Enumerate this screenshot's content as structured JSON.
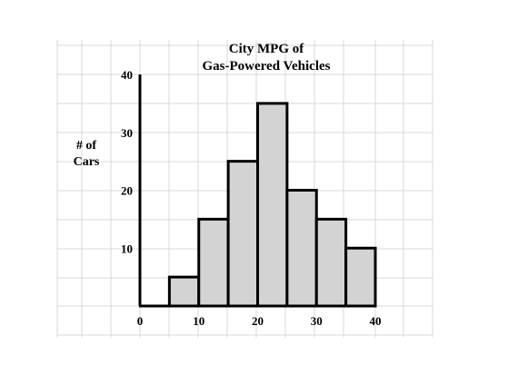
{
  "chart_data": {
    "type": "bar",
    "title": [
      "City MPG of",
      "Gas-Powered Vehicles"
    ],
    "ylabel": [
      "# of",
      "Cars"
    ],
    "xlabel": "",
    "bins": [
      {
        "start": 5,
        "end": 10,
        "count": 5
      },
      {
        "start": 10,
        "end": 15,
        "count": 15
      },
      {
        "start": 15,
        "end": 20,
        "count": 25
      },
      {
        "start": 20,
        "end": 25,
        "count": 35
      },
      {
        "start": 25,
        "end": 30,
        "count": 20
      },
      {
        "start": 30,
        "end": 35,
        "count": 15
      },
      {
        "start": 35,
        "end": 40,
        "count": 10
      }
    ],
    "xlim": [
      0,
      40
    ],
    "ylim": [
      0,
      40
    ],
    "xticks": [
      "0",
      "10",
      "20",
      "30",
      "40"
    ],
    "yticks": [
      "10",
      "20",
      "30",
      "40"
    ],
    "grid": true,
    "colors": {
      "bar_fill": "#d3d3d3",
      "bar_stroke": "#000000",
      "grid": "#d8d8d8"
    }
  }
}
